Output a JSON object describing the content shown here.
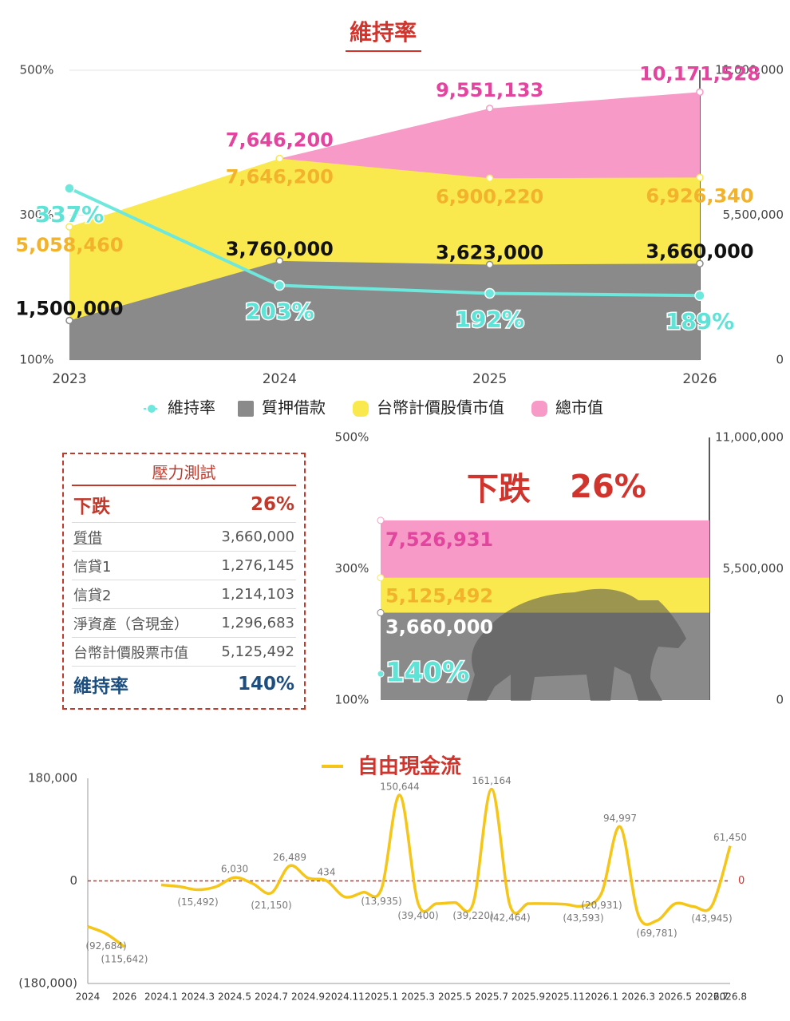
{
  "chart_data": [
    {
      "type": "area",
      "title": "維持率",
      "categories": [
        "2023",
        "2024",
        "2025",
        "2026"
      ],
      "series": [
        {
          "name": "維持率",
          "type": "line",
          "color": "#6ee8dc",
          "label_color": "#5fe3d6",
          "values": [
            337,
            203,
            192,
            189
          ],
          "value_labels": [
            "337%",
            "203%",
            "192%",
            "189%"
          ]
        },
        {
          "name": "質押借款",
          "type": "area",
          "axis": "y2",
          "color": "#8a8a8a",
          "label_color": "#111111",
          "values": [
            1500000,
            3760000,
            3623000,
            3660000
          ],
          "value_labels": [
            "1,500,000",
            "3,760,000",
            "3,623,000",
            "3,660,000"
          ]
        },
        {
          "name": "台幣計價股債市值",
          "type": "area",
          "axis": "y2",
          "color": "#f9e94e",
          "label_color": "#f2b22c",
          "values": [
            5058460,
            7646200,
            6900220,
            6926340
          ],
          "value_labels": [
            "5,058,460",
            "7,646,200",
            "6,900,220",
            "6,926,340"
          ]
        },
        {
          "name": "總市值",
          "type": "area",
          "axis": "y2",
          "color": "#f79ac8",
          "label_color": "#e2449e",
          "values": [
            null,
            7646200,
            9551133,
            10171528
          ],
          "value_labels": [
            null,
            "7,646,200",
            "9,551,133",
            "10,171,528"
          ]
        }
      ],
      "ylim": [
        100,
        500
      ],
      "yticks": [
        {
          "value": 100,
          "label": "100%"
        },
        {
          "value": 300,
          "label": "300%"
        },
        {
          "value": 500,
          "label": "500%"
        }
      ],
      "y2lim": [
        0,
        11000000
      ],
      "y2ticks": [
        0,
        {
          "value": 5500000,
          "label": "5,500,000"
        },
        {
          "value": 11000000,
          "label": "11,000,000"
        }
      ],
      "grid": true
    },
    {
      "type": "bar",
      "title": "下跌",
      "subtitle": "26%",
      "series": [
        {
          "type": "line",
          "color": "#6ee8dc",
          "label_color": "#5fe3d6",
          "values": [
            140
          ],
          "value_labels": [
            "140%"
          ]
        },
        {
          "type": "bar",
          "axis": "y2",
          "color": "#8a8a8a",
          "label_color": "#ffffff",
          "values": [
            3660000
          ],
          "value_labels": [
            "3,660,000"
          ]
        },
        {
          "type": "bar",
          "axis": "y2",
          "color": "#f9e94e",
          "label_color": "#f2b22c",
          "values": [
            5125492
          ],
          "value_labels": [
            "5,125,492"
          ]
        },
        {
          "type": "bar",
          "axis": "y2",
          "color": "#f79ac8",
          "label_color": "#e2449e",
          "values": [
            7526931
          ],
          "value_labels": [
            "7,526,931"
          ]
        }
      ],
      "ylim": [
        100,
        500
      ],
      "yticks": [
        {
          "value": 100,
          "label": "100%"
        },
        {
          "value": 300,
          "label": "300%"
        },
        {
          "value": 500,
          "label": "500%"
        }
      ],
      "y2lim": [
        0,
        11000000
      ],
      "y2ticks": [
        0,
        {
          "value": 5500000,
          "label": "5,500,000"
        },
        {
          "value": 11000000,
          "label": "11,000,000"
        }
      ],
      "grid": false
    },
    {
      "type": "line",
      "categories": [
        "2024",
        null,
        "2026",
        null,
        "2024.1",
        null,
        "2024.3",
        null,
        "2024.5",
        null,
        "2024.7",
        null,
        "2024.9",
        null,
        "2024.11",
        null,
        "2025.1",
        null,
        "2025.3",
        null,
        "2025.5",
        null,
        "2025.7",
        null,
        "2025.9",
        null,
        "2025.11",
        null,
        "2026.1",
        null,
        "2026.3",
        null,
        "2026.5",
        null,
        "2026.7",
        "2026.8"
      ],
      "series": [
        {
          "name": "自由現金流",
          "color": "#f5c518",
          "values": [
            -80000,
            -92684,
            -115642,
            null,
            -7000,
            -10000,
            -15492,
            -10000,
            6030,
            -5000,
            -21150,
            26489,
            5000,
            434,
            -28000,
            -20000,
            -13935,
            150644,
            -39400,
            -40000,
            -38000,
            -39220,
            161164,
            -42464,
            -40000,
            -40000,
            -41000,
            -43593,
            -20931,
            94997,
            -60000,
            -69781,
            -40000,
            -45000,
            -43945,
            61450
          ],
          "value_labels": [
            null,
            "(92,684)",
            "(115,642)",
            null,
            null,
            null,
            "(15,492)",
            null,
            "6,030",
            null,
            "(21,150)",
            "26,489",
            null,
            "434",
            null,
            null,
            "(13,935)",
            "150,644",
            "(39,400)",
            null,
            null,
            "(39,220)",
            "161,164",
            "(42,464)",
            null,
            null,
            null,
            "(43,593)",
            "(20,931)",
            "94,997",
            null,
            "(69,781)",
            null,
            null,
            "(43,945)",
            "61,450"
          ]
        }
      ],
      "ylim": [
        -180000,
        180000
      ],
      "yticks": [
        {
          "value": -180000,
          "label": "(180,000)"
        },
        0,
        {
          "value": 180000,
          "label": "180,000"
        }
      ],
      "reference_line": 0,
      "reference_color": "#d0342c",
      "grid": false
    }
  ],
  "stress_test": {
    "title": "壓力測試",
    "rows": [
      [
        "下跌",
        "26%"
      ],
      [
        "質借",
        "3,660,000"
      ],
      [
        "信貸1",
        "1,276,145"
      ],
      [
        "信貸2",
        "1,214,103"
      ],
      [
        "淨資產（含現金）",
        "1,296,683"
      ],
      [
        "台幣計價股票市值",
        "5,125,492"
      ],
      [
        "維持率",
        "140%"
      ]
    ]
  }
}
